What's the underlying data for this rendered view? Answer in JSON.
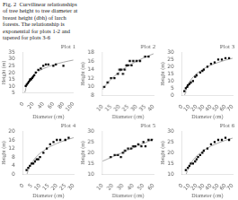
{
  "caption": "Fig. 2  Curvilinear relationships\nof tree height to tree diameter at\nbreast height (dbh) of larch\nforests. The relationship is\nexponential for plots 1-2 and\ntapered for plots 3-6",
  "chart_data": [
    {
      "type": "scatter",
      "title": "Plot 1",
      "x_label": "Diameter (cm)",
      "y_label": "Height (m)",
      "xlim": [
        0,
        100
      ],
      "ylim": [
        5,
        35
      ],
      "xticks": [
        0,
        20,
        40,
        60,
        80,
        100
      ],
      "yticks": [
        5,
        10,
        15,
        20,
        25,
        30,
        35
      ],
      "grid": false,
      "series": [
        {
          "type": "scatter",
          "color": "black",
          "marker": "square",
          "x": [
            5,
            7,
            9,
            11,
            13,
            14,
            16,
            18,
            20,
            22,
            25,
            30,
            35,
            40,
            45,
            50,
            60,
            65,
            80
          ],
          "values": [
            10,
            11,
            12,
            13,
            14,
            15,
            15,
            16,
            17,
            18,
            20,
            22,
            23,
            25,
            26,
            26,
            25,
            26,
            25
          ]
        },
        {
          "type": "line",
          "color": "#aaaaaa",
          "line_style": "solid",
          "x": [
            3.2,
            4,
            5,
            7,
            10,
            15,
            20,
            30,
            40,
            50,
            60,
            70,
            80,
            90,
            100
          ],
          "values": [
            5.13,
            6.7,
            8.26,
            10.63,
            13.13,
            15.98,
            18.0,
            20.85,
            22.87,
            24.44,
            25.72,
            26.8,
            27.74,
            28.57,
            29.31
          ]
        }
      ]
    },
    {
      "type": "scatter",
      "title": "Plot 2",
      "x_label": "Diameter (cm)",
      "y_label": "Height (m)",
      "xlim": [
        10,
        40
      ],
      "ylim": [
        8,
        18
      ],
      "xticks": [
        10,
        15,
        20,
        25,
        30,
        35,
        40
      ],
      "yticks": [
        8,
        10,
        12,
        14,
        16,
        18
      ],
      "grid": false,
      "series": [
        {
          "type": "scatter",
          "color": "black",
          "marker": "square",
          "x": [
            11,
            13,
            15,
            17,
            19,
            20,
            21,
            22,
            23,
            24,
            25,
            26,
            27,
            28,
            30,
            32,
            35,
            37
          ],
          "values": [
            10,
            11,
            12,
            12,
            13,
            14,
            14,
            13,
            14,
            15,
            15,
            16,
            15,
            16,
            16,
            16,
            17,
            17
          ]
        },
        {
          "type": "line",
          "color": "#aaaaaa",
          "line_style": "solid",
          "x": [
            10,
            12.5,
            15,
            20,
            25,
            30,
            35,
            40
          ],
          "values": [
            9.35,
            10.69,
            11.79,
            13.52,
            14.86,
            15.96,
            16.88,
            17.69
          ]
        }
      ]
    },
    {
      "type": "scatter",
      "title": "Plot 3",
      "x_label": "Diameter (cm)",
      "y_label": "Height (m)",
      "xlim": [
        0,
        70
      ],
      "ylim": [
        0,
        30
      ],
      "xticks": [
        0,
        10,
        20,
        30,
        40,
        50,
        60,
        70
      ],
      "yticks": [
        0,
        5,
        10,
        15,
        20,
        25,
        30
      ],
      "grid": false,
      "series": [
        {
          "type": "scatter",
          "color": "black",
          "marker": "square",
          "x": [
            3,
            5,
            7,
            8,
            10,
            12,
            15,
            18,
            20,
            25,
            28,
            30,
            35,
            40,
            45,
            50,
            55,
            60,
            65
          ],
          "values": [
            3,
            5,
            6,
            7,
            8,
            9,
            10,
            13,
            14,
            16,
            17,
            18,
            20,
            22,
            23,
            25,
            25,
            26,
            26
          ]
        },
        {
          "type": "line",
          "color": "#aaaaaa",
          "line_style": "solid",
          "x": [
            3.4,
            4,
            5,
            7,
            10,
            15,
            20,
            30,
            40,
            50,
            60,
            70
          ],
          "values": [
            0.2,
            1.58,
            3.47,
            6.33,
            9.36,
            12.81,
            15.25,
            18.69,
            21.14,
            23.03,
            24.58,
            25.89
          ]
        }
      ]
    },
    {
      "type": "scatter",
      "title": "Plot 4",
      "x_label": "Diameter (cm)",
      "y_label": "Height (m)",
      "xlim": [
        0,
        30
      ],
      "ylim": [
        0,
        20
      ],
      "xticks": [
        0,
        5,
        10,
        15,
        20,
        25,
        30
      ],
      "yticks": [
        0,
        4,
        8,
        12,
        16,
        20
      ],
      "grid": false,
      "series": [
        {
          "type": "scatter",
          "color": "black",
          "marker": "square",
          "x": [
            2,
            3,
            4,
            5,
            6,
            7,
            8,
            9,
            10,
            12,
            14,
            16,
            18,
            20,
            22,
            25,
            27
          ],
          "values": [
            2,
            3,
            4,
            5,
            5,
            6,
            7,
            7,
            8,
            10,
            12,
            14,
            15,
            16,
            16,
            16,
            17
          ]
        },
        {
          "type": "line",
          "color": "#aaaaaa",
          "line_style": "solid",
          "x": [
            2.3,
            3,
            4,
            5,
            7,
            10,
            15,
            20,
            25,
            30
          ],
          "values": [
            0.2,
            1.95,
            3.83,
            5.29,
            7.5,
            9.84,
            12.5,
            14.38,
            15.85,
            17.04
          ]
        }
      ]
    },
    {
      "type": "scatter",
      "title": "Plot 5",
      "x_label": "Diameter (cm)",
      "y_label": "Height (m)",
      "xlim": [
        10,
        60
      ],
      "ylim": [
        10,
        30
      ],
      "xticks": [
        10,
        20,
        30,
        40,
        50,
        60
      ],
      "yticks": [
        10,
        15,
        20,
        25,
        30
      ],
      "grid": false,
      "series": [
        {
          "type": "scatter",
          "color": "black",
          "marker": "square",
          "x": [
            18,
            22,
            25,
            28,
            30,
            32,
            35,
            38,
            40,
            42,
            45,
            48,
            50,
            52,
            55,
            58
          ],
          "values": [
            18,
            19,
            19,
            18,
            20,
            21,
            22,
            22,
            23,
            23,
            24,
            23,
            25,
            23,
            26,
            26
          ]
        },
        {
          "type": "line",
          "color": "#aaaaaa",
          "line_style": "solid",
          "x": [
            10,
            60
          ],
          "values": [
            16.12,
            26.39
          ]
        }
      ]
    },
    {
      "type": "scatter",
      "title": "Plot 6",
      "x_label": "Diameter (cm)",
      "y_label": "Height (m)",
      "xlim": [
        0,
        70
      ],
      "ylim": [
        10,
        30
      ],
      "xticks": [
        0,
        10,
        20,
        30,
        40,
        50,
        60,
        70
      ],
      "yticks": [
        10,
        15,
        20,
        25,
        30
      ],
      "grid": false,
      "series": [
        {
          "type": "scatter",
          "color": "black",
          "marker": "square",
          "x": [
            5,
            8,
            10,
            12,
            15,
            18,
            20,
            22,
            25,
            28,
            30,
            35,
            40,
            45,
            50,
            55,
            60,
            65
          ],
          "values": [
            12,
            13,
            14,
            15,
            15,
            16,
            17,
            18,
            19,
            20,
            21,
            22,
            24,
            25,
            26,
            26,
            27,
            26
          ]
        },
        {
          "type": "line",
          "color": "#aaaaaa",
          "line_style": "solid",
          "x": [
            5.6,
            7,
            10,
            15,
            20,
            30,
            40,
            50,
            60,
            70
          ],
          "values": [
            10.05,
            11.53,
            13.9,
            16.6,
            18.51,
            21.21,
            23.12,
            24.6,
            25.82,
            26.84
          ]
        }
      ]
    }
  ]
}
